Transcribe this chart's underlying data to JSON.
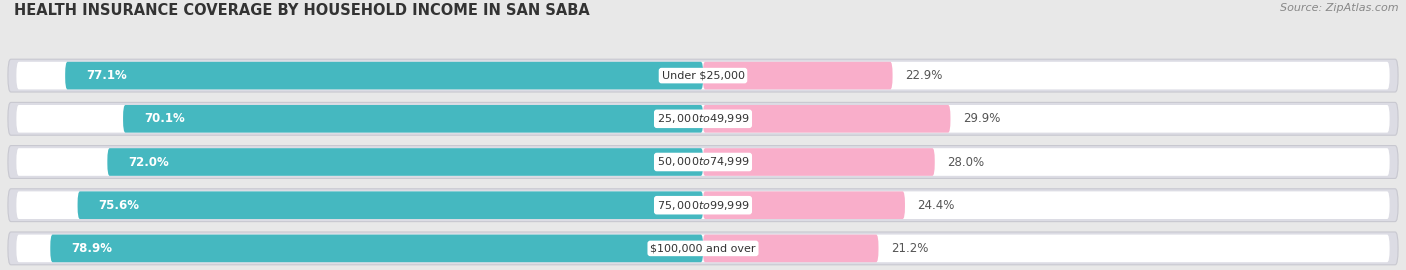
{
  "title": "HEALTH INSURANCE COVERAGE BY HOUSEHOLD INCOME IN SAN SABA",
  "source": "Source: ZipAtlas.com",
  "categories": [
    "Under $25,000",
    "$25,000 to $49,999",
    "$50,000 to $74,999",
    "$75,000 to $99,999",
    "$100,000 and over"
  ],
  "with_coverage": [
    77.1,
    70.1,
    72.0,
    75.6,
    78.9
  ],
  "without_coverage": [
    22.9,
    29.9,
    28.0,
    24.4,
    21.2
  ],
  "color_coverage": "#45B8C0",
  "color_nocoverage": "#F06FA0",
  "color_nocoverage_light": "#F9AECA",
  "bar_height": 0.6,
  "xlim": [
    -85,
    85
  ],
  "background_color": "#e8e8e8",
  "bar_bg_color": "#e0e0e8",
  "title_fontsize": 10.5,
  "source_fontsize": 8,
  "label_fontsize": 8.5,
  "tick_fontsize": 9,
  "legend_fontsize": 9,
  "cat_label_fontsize": 8
}
